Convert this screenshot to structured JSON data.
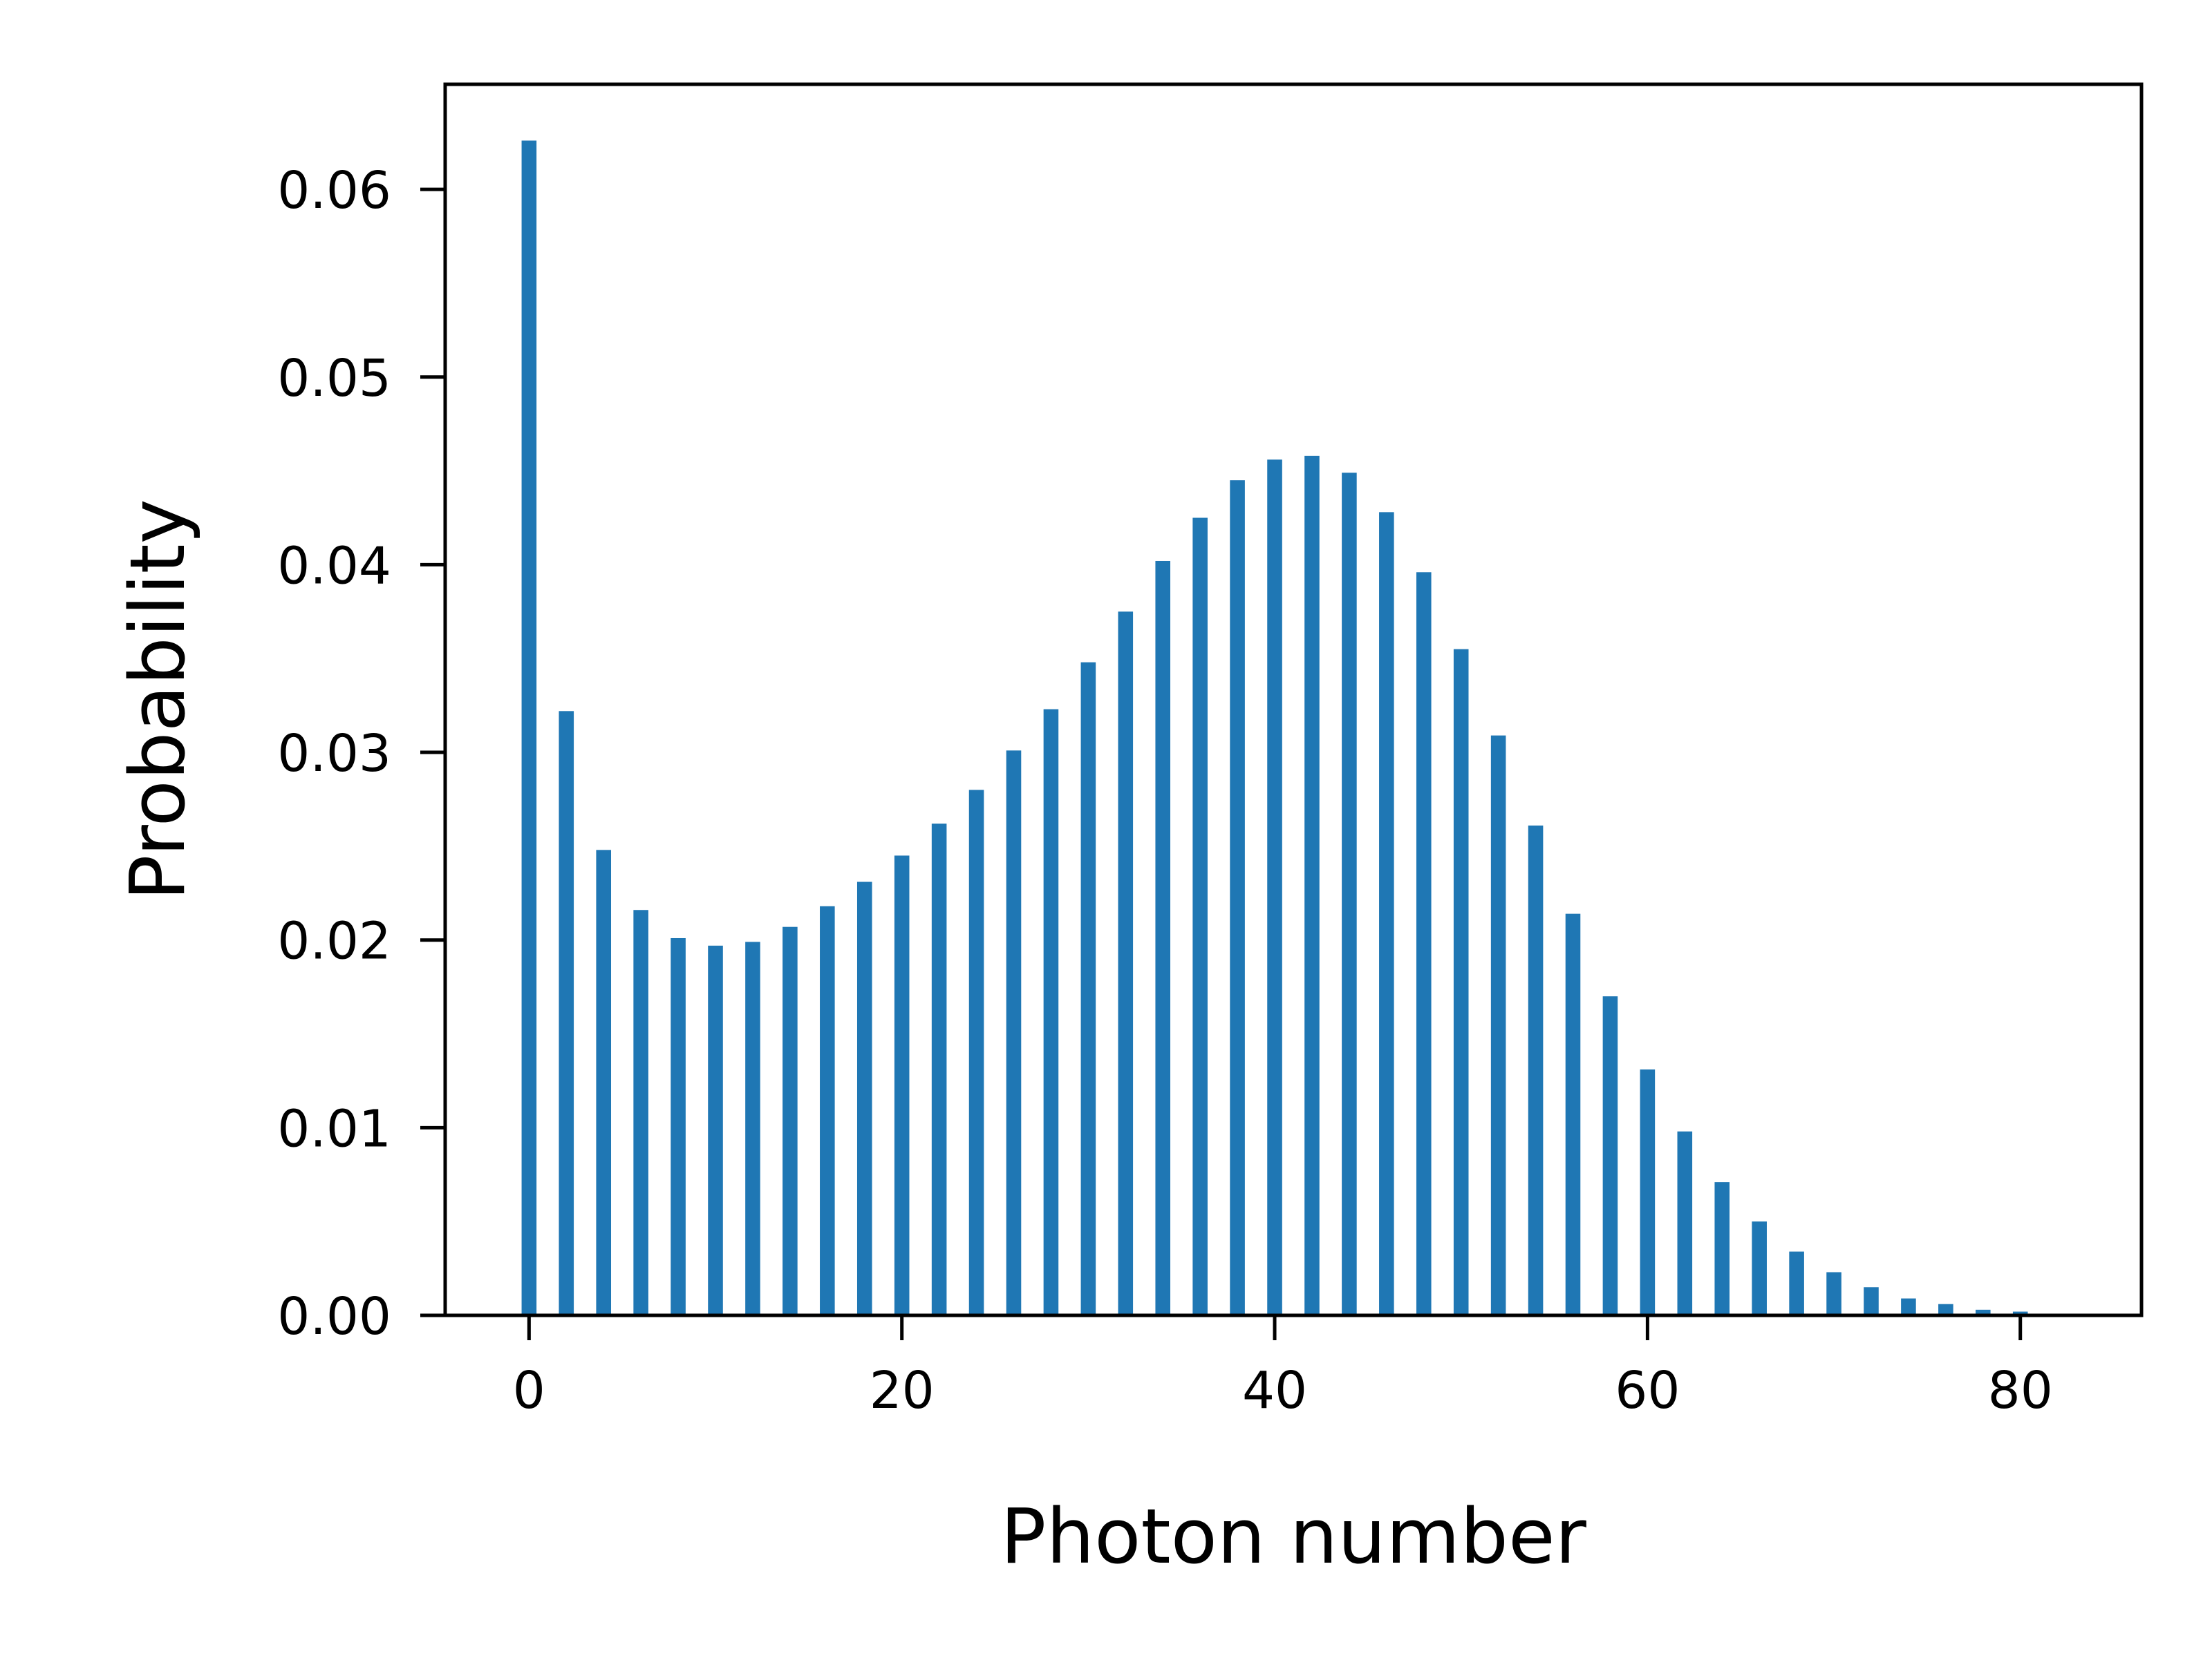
{
  "chart_data": {
    "type": "bar",
    "xlabel": "Photon number",
    "ylabel": "Probability",
    "xlim": [
      -4.5,
      86.5
    ],
    "ylim": [
      0.0,
      0.0656
    ],
    "xticks": [
      0,
      20,
      40,
      60,
      80
    ],
    "xtick_labels": [
      "0",
      "20",
      "40",
      "60",
      "80"
    ],
    "yticks": [
      0.0,
      0.01,
      0.02,
      0.03,
      0.04,
      0.05,
      0.06
    ],
    "ytick_labels": [
      "0.00",
      "0.01",
      "0.02",
      "0.03",
      "0.04",
      "0.05",
      "0.06"
    ],
    "bar_width": 0.8,
    "grid": false,
    "color": "#1f77b4",
    "x": [
      0,
      2,
      4,
      6,
      8,
      10,
      12,
      14,
      16,
      18,
      20,
      22,
      24,
      26,
      28,
      30,
      32,
      34,
      36,
      38,
      40,
      42,
      44,
      46,
      48,
      50,
      52,
      54,
      56,
      58,
      60,
      62,
      64,
      66,
      68,
      70,
      72,
      74,
      76,
      78,
      80
    ],
    "values": [
      0.0626,
      0.0322,
      0.0248,
      0.0216,
      0.0201,
      0.0197,
      0.0199,
      0.0207,
      0.0218,
      0.0231,
      0.0245,
      0.0262,
      0.028,
      0.0301,
      0.0323,
      0.0348,
      0.0375,
      0.0402,
      0.0425,
      0.0445,
      0.0456,
      0.0458,
      0.0449,
      0.0428,
      0.0396,
      0.0355,
      0.0309,
      0.0261,
      0.0214,
      0.017,
      0.0131,
      0.0098,
      0.0071,
      0.005,
      0.0034,
      0.0023,
      0.0015,
      0.0009,
      0.0006,
      0.0003,
      0.0002
    ]
  }
}
